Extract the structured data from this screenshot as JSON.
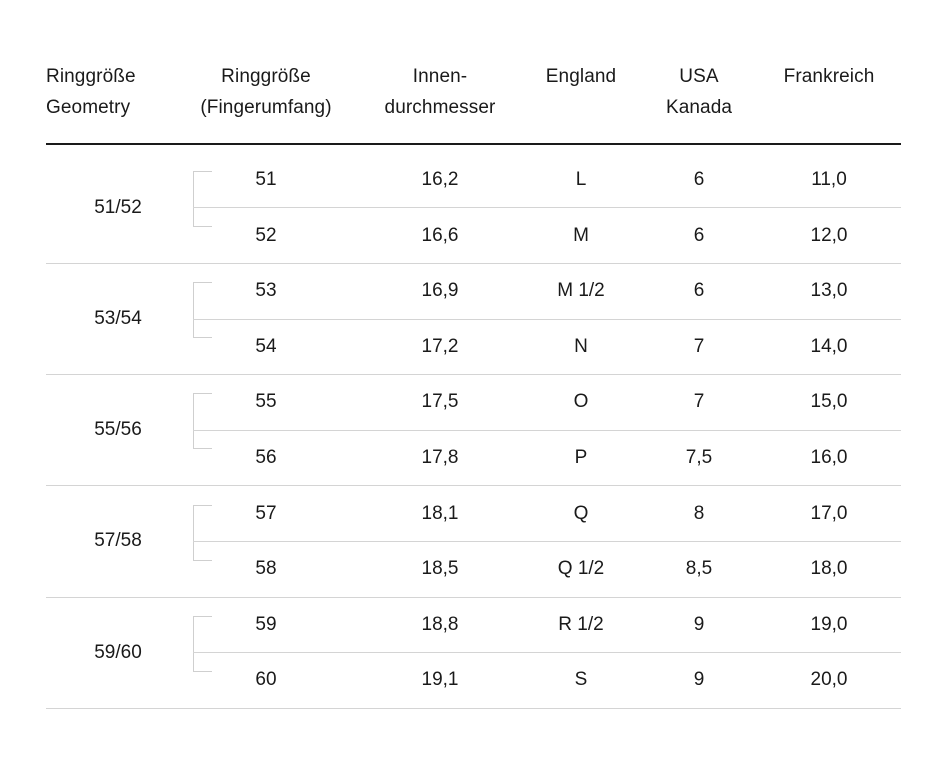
{
  "table": {
    "headers": [
      {
        "lines": [
          "Ringgröße",
          "Geometry"
        ]
      },
      {
        "lines": [
          "Ringgröße",
          "(Fingerumfang)"
        ]
      },
      {
        "lines": [
          "Innen-",
          "durchmesser"
        ]
      },
      {
        "lines": [
          "England"
        ]
      },
      {
        "lines": [
          "USA",
          "Kanada"
        ]
      },
      {
        "lines": [
          "Frankreich"
        ]
      }
    ],
    "groups": [
      {
        "label": "51/52",
        "rows": [
          {
            "fingerumfang": "51",
            "innendurchmesser": "16,2",
            "england": "L",
            "usa_kanada": "6",
            "frankreich": "11,0"
          },
          {
            "fingerumfang": "52",
            "innendurchmesser": "16,6",
            "england": "M",
            "usa_kanada": "6",
            "frankreich": "12,0"
          }
        ]
      },
      {
        "label": "53/54",
        "rows": [
          {
            "fingerumfang": "53",
            "innendurchmesser": "16,9",
            "england": "M 1/2",
            "usa_kanada": "6",
            "frankreich": "13,0"
          },
          {
            "fingerumfang": "54",
            "innendurchmesser": "17,2",
            "england": "N",
            "usa_kanada": "7",
            "frankreich": "14,0"
          }
        ]
      },
      {
        "label": "55/56",
        "rows": [
          {
            "fingerumfang": "55",
            "innendurchmesser": "17,5",
            "england": "O",
            "usa_kanada": "7",
            "frankreich": "15,0"
          },
          {
            "fingerumfang": "56",
            "innendurchmesser": "17,8",
            "england": "P",
            "usa_kanada": "7,5",
            "frankreich": "16,0"
          }
        ]
      },
      {
        "label": "57/58",
        "rows": [
          {
            "fingerumfang": "57",
            "innendurchmesser": "18,1",
            "england": "Q",
            "usa_kanada": "8",
            "frankreich": "17,0"
          },
          {
            "fingerumfang": "58",
            "innendurchmesser": "18,5",
            "england": "Q 1/2",
            "usa_kanada": "8,5",
            "frankreich": "18,0"
          }
        ]
      },
      {
        "label": "59/60",
        "rows": [
          {
            "fingerumfang": "59",
            "innendurchmesser": "18,8",
            "england": "R 1/2",
            "usa_kanada": "9",
            "frankreich": "19,0"
          },
          {
            "fingerumfang": "60",
            "innendurchmesser": "19,1",
            "england": "S",
            "usa_kanada": "9",
            "frankreich": "20,0"
          }
        ]
      }
    ]
  }
}
